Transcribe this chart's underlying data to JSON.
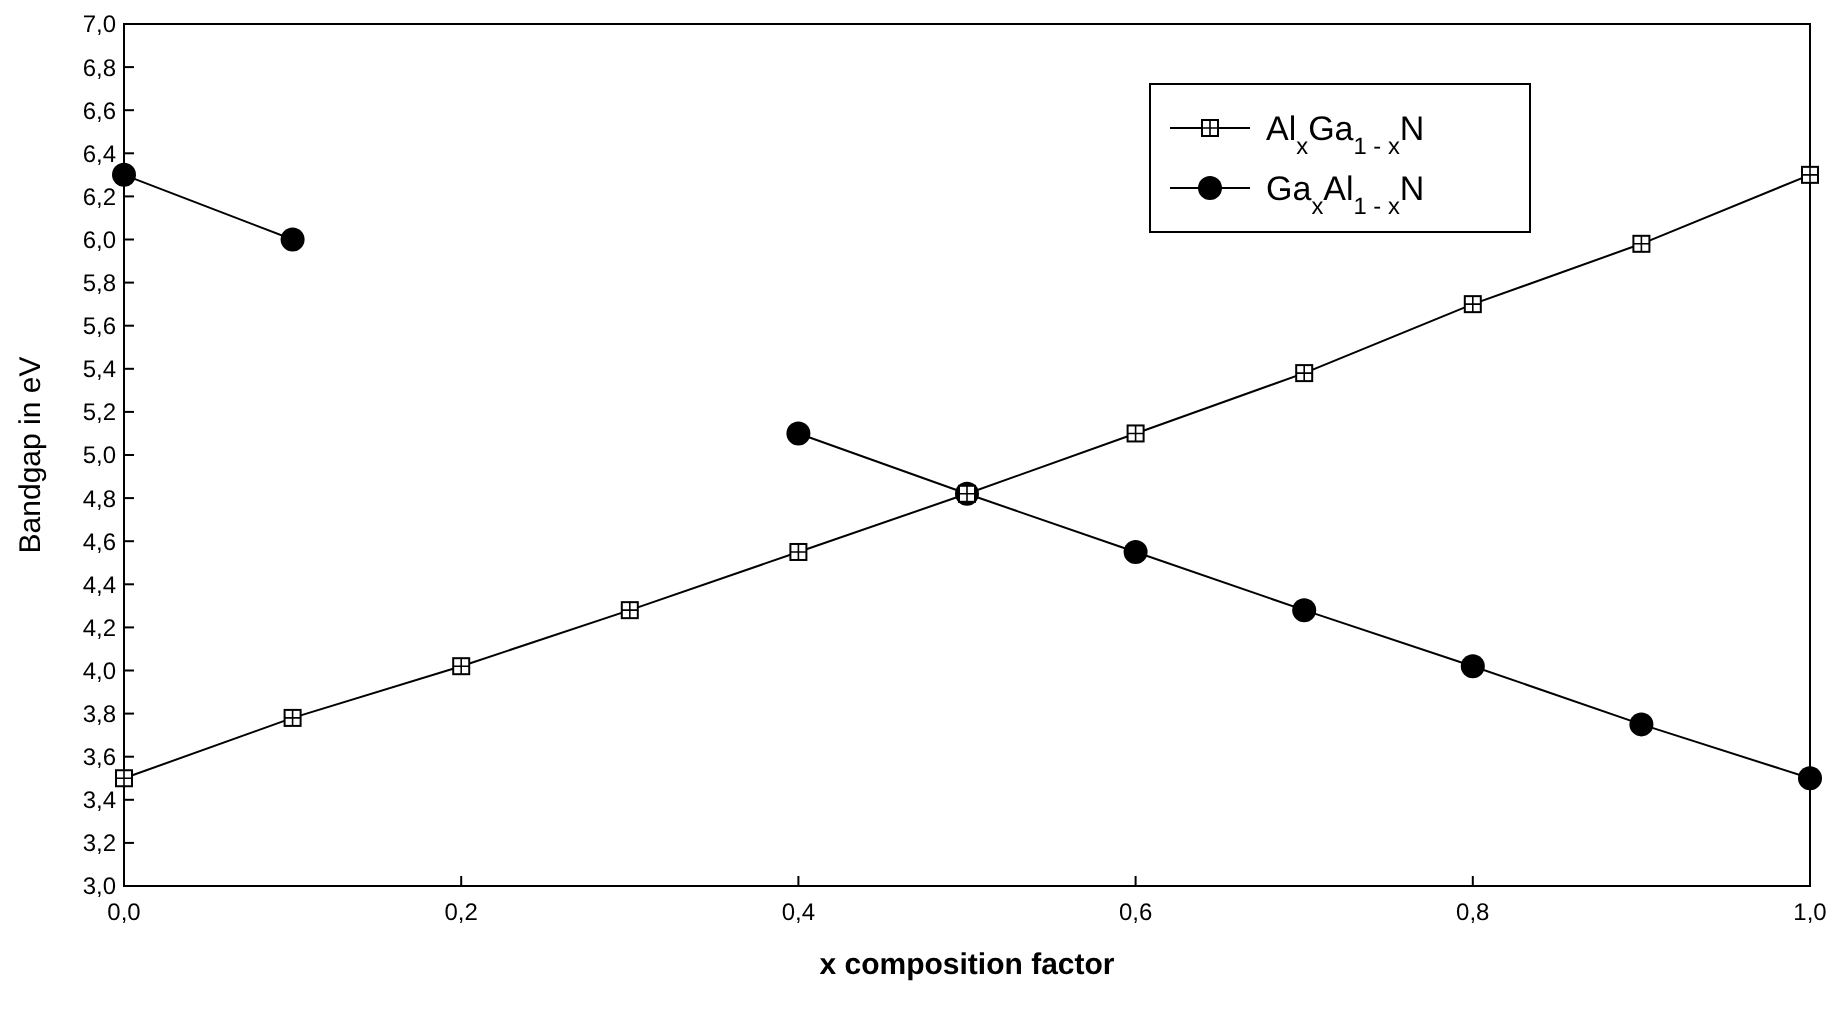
{
  "chart_data": {
    "type": "line",
    "xlabel": "x composition factor",
    "ylabel": "Bandgap in eV",
    "x": [
      0,
      0.1,
      0.2,
      0.3,
      0.4,
      0.5,
      0.6,
      0.7,
      0.8,
      0.9,
      1.0
    ],
    "series": [
      {
        "name": "Al$_{x}$Ga$_{1 - x}$N",
        "color": "#000000",
        "marker": "square",
        "values": [
          3.5,
          3.78,
          4.02,
          4.28,
          4.55,
          4.82,
          5.1,
          5.38,
          5.7,
          5.98,
          6.3
        ]
      },
      {
        "name": "Ga$_{x}$Al$_{1 - x}$N",
        "color": "#000000",
        "marker": "circle",
        "values": [
          6.3,
          6.0,
          null,
          null,
          5.1,
          4.82,
          4.55,
          4.28,
          4.02,
          3.75,
          3.5
        ]
      }
    ],
    "xlim": [
      0,
      1
    ],
    "xticks": [
      {
        "value": 0,
        "label": "0,0"
      },
      {
        "value": 0.2,
        "label": "0,2"
      },
      {
        "value": 0.4,
        "label": "0,4"
      },
      {
        "value": 0.6,
        "label": "0,6"
      },
      {
        "value": 0.8,
        "label": "0,8"
      },
      {
        "value": 1,
        "label": "1,0"
      }
    ],
    "ylim": [
      3,
      7
    ],
    "yticks": [
      {
        "value": 3,
        "label": "3,0"
      },
      {
        "value": 3.2,
        "label": "3,2"
      },
      {
        "value": 3.4,
        "label": "3,4"
      },
      {
        "value": 3.6,
        "label": "3,6"
      },
      {
        "value": 3.8,
        "label": "3,8"
      },
      {
        "value": 4,
        "label": "4,0"
      },
      {
        "value": 4.2,
        "label": "4,2"
      },
      {
        "value": 4.4,
        "label": "4,4"
      },
      {
        "value": 4.6,
        "label": "4,6"
      },
      {
        "value": 4.8,
        "label": "4,8"
      },
      {
        "value": 5,
        "label": "5,0"
      },
      {
        "value": 5.2,
        "label": "5,2"
      },
      {
        "value": 5.4,
        "label": "5,4"
      },
      {
        "value": 5.6,
        "label": "5,6"
      },
      {
        "value": 5.8,
        "label": "5,8"
      },
      {
        "value": 6,
        "label": "6,0"
      },
      {
        "value": 6.2,
        "label": "6,2"
      },
      {
        "value": 6.4,
        "label": "6,4"
      },
      {
        "value": 6.6,
        "label": "6,6"
      },
      {
        "value": 6.8,
        "label": "6,8"
      },
      {
        "value": 7,
        "label": "7,0"
      }
    ],
    "legend": "top right",
    "grid": false
  }
}
